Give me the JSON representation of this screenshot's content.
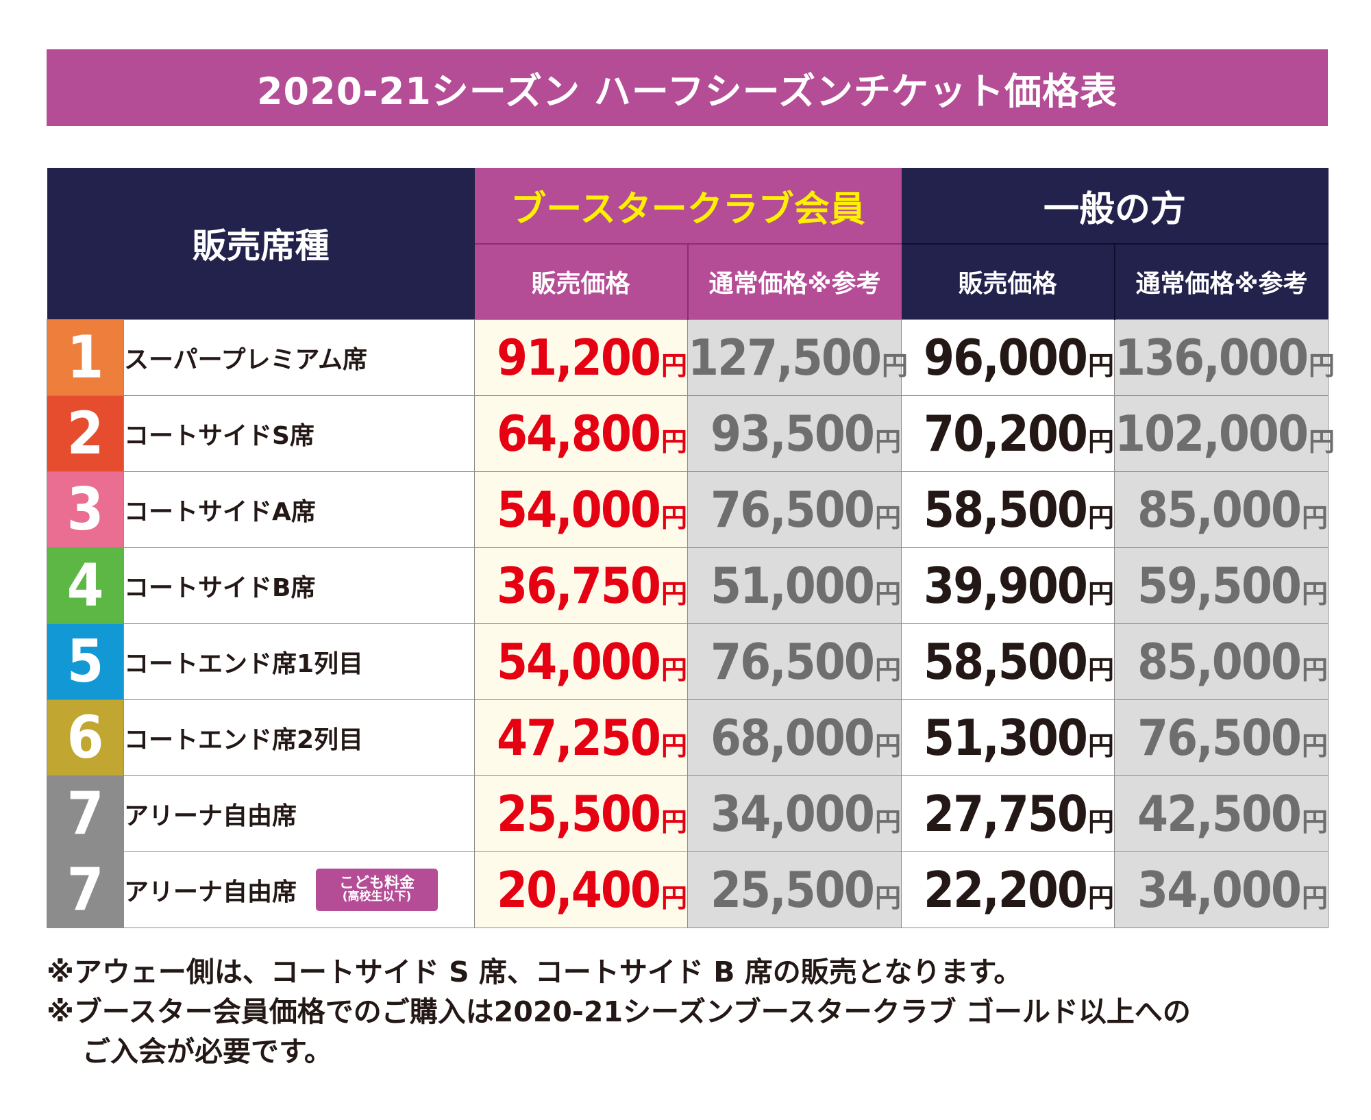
{
  "title": "2020-21シーズン ハーフシーズンチケット価格表",
  "header": {
    "seat_type": "販売席種",
    "booster_group": "ブースタークラブ会員",
    "general_group": "一般の方",
    "sale_price": "販売価格",
    "regular_price": "通常価格※参考"
  },
  "yen": "円",
  "rows": [
    {
      "num": "1",
      "color": "#ee7e3b",
      "seat": "スーパープレミアム席",
      "member_sale": "91,200",
      "member_ref": "127,500",
      "general_sale": "96,000",
      "general_ref": "136,000"
    },
    {
      "num": "2",
      "color": "#e64d2f",
      "seat": "コートサイドS席",
      "member_sale": "64,800",
      "member_ref": "93,500",
      "general_sale": "70,200",
      "general_ref": "102,000"
    },
    {
      "num": "3",
      "color": "#ea6e91",
      "seat": "コートサイドA席",
      "member_sale": "54,000",
      "member_ref": "76,500",
      "general_sale": "58,500",
      "general_ref": "85,000"
    },
    {
      "num": "4",
      "color": "#5cb744",
      "seat": "コートサイドB席",
      "member_sale": "36,750",
      "member_ref": "51,000",
      "general_sale": "39,900",
      "general_ref": "59,500"
    },
    {
      "num": "5",
      "color": "#1198d5",
      "seat": "コートエンド席1列目",
      "member_sale": "54,000",
      "member_ref": "76,500",
      "general_sale": "58,500",
      "general_ref": "85,000"
    },
    {
      "num": "6",
      "color": "#c1a731",
      "seat": "コートエンド席2列目",
      "member_sale": "47,250",
      "member_ref": "68,000",
      "general_sale": "51,300",
      "general_ref": "76,500"
    },
    {
      "num": "7",
      "color": "#8c8c8c",
      "seat": "アリーナ自由席",
      "member_sale": "25,500",
      "member_ref": "34,000",
      "general_sale": "27,750",
      "general_ref": "42,500"
    },
    {
      "num": "7",
      "color": "#8c8c8c",
      "seat": "アリーナ自由席",
      "badge_main": "こども料金",
      "badge_sub": "(高校生以下)",
      "member_sale": "20,400",
      "member_ref": "25,500",
      "general_sale": "22,200",
      "general_ref": "34,000"
    }
  ],
  "notes": [
    "※アウェー側は、コートサイド S 席、コートサイド B 席の販売となります。",
    "※ブースター会員価格でのご購入は2020-21シーズンブースタークラブ ゴールド以上への",
    "ご入会が必要です。"
  ]
}
